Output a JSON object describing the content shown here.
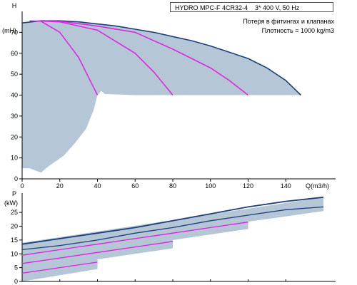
{
  "header": {
    "model": "HYDRO MPC-F 4CR32-4",
    "supply": "3* 400 V, 50 Hz"
  },
  "notes": {
    "line1": "Потеря в фитингах и клапанах",
    "line2": "Плотность = 1000 kg/m3"
  },
  "colors": {
    "envelope": "#b5c6d6",
    "pump_curve": "#1c3f78",
    "system_curve": "#e020e0",
    "axis": "#000000"
  },
  "chart_data": [
    {
      "type": "line",
      "name": "head",
      "ylabel_top": "H",
      "ylabel_unit": "(mH)",
      "xlabel": "Q(m3/h)",
      "xlim": [
        0,
        160
      ],
      "ylim": [
        0,
        80
      ],
      "xticks": [
        0,
        20,
        40,
        60,
        80,
        100,
        120,
        140
      ],
      "yticks": [
        0,
        10,
        20,
        30,
        40,
        50,
        60,
        70
      ],
      "xtick_labels": [
        "0",
        "20",
        "40",
        "60",
        "80",
        "100",
        "120",
        "140"
      ],
      "ytick_labels": [
        "0",
        "10",
        "20",
        "30",
        "40",
        "50",
        "60",
        "70"
      ],
      "grid": false,
      "envelope": {
        "upper": [
          [
            0,
            74.5
          ],
          [
            10,
            75.5
          ],
          [
            20,
            75.5
          ],
          [
            30,
            75
          ],
          [
            40,
            74
          ],
          [
            60,
            71.5
          ],
          [
            80,
            68
          ],
          [
            100,
            63.5
          ],
          [
            120,
            57.5
          ],
          [
            130,
            53
          ],
          [
            140,
            47
          ],
          [
            145,
            43
          ],
          [
            148,
            40
          ]
        ],
        "lower": [
          [
            148,
            40
          ],
          [
            120,
            40
          ],
          [
            100,
            40
          ],
          [
            80,
            40
          ],
          [
            60,
            40
          ],
          [
            44,
            40.5
          ],
          [
            42,
            42
          ],
          [
            40,
            40
          ],
          [
            38,
            33
          ],
          [
            34,
            24
          ],
          [
            28,
            17
          ],
          [
            22,
            11
          ],
          [
            14,
            6
          ],
          [
            10,
            3
          ],
          [
            4,
            5
          ],
          [
            0,
            5
          ]
        ]
      },
      "series": [
        {
          "role": "max_speed_curve",
          "x": [
            0,
            10,
            20,
            30,
            40,
            50,
            60,
            70,
            80,
            90,
            100,
            110,
            120,
            130,
            140,
            148
          ],
          "y": [
            74.5,
            75.5,
            75.5,
            75,
            74,
            73,
            71.5,
            70,
            68,
            66,
            63.5,
            60.5,
            57.5,
            53,
            47,
            40
          ]
        },
        {
          "role": "system_curve",
          "x": [
            4,
            10,
            20,
            30,
            35,
            40
          ],
          "y": [
            75.5,
            75.3,
            70,
            58,
            49,
            40
          ]
        },
        {
          "role": "system_curve",
          "x": [
            8,
            20,
            40,
            60,
            70,
            80
          ],
          "y": [
            75.5,
            75,
            71,
            60,
            51,
            40
          ]
        },
        {
          "role": "system_curve",
          "x": [
            12,
            20,
            40,
            60,
            80,
            100,
            110,
            120
          ],
          "y": [
            75.5,
            75.3,
            73,
            70,
            62,
            53,
            47,
            40
          ]
        }
      ]
    },
    {
      "type": "line",
      "name": "power",
      "ylabel_top": "P",
      "ylabel_unit": "(kW)",
      "xlim": [
        0,
        160
      ],
      "ylim": [
        0,
        32
      ],
      "yticks": [
        0,
        5,
        10,
        15,
        20,
        25
      ],
      "ytick_labels": [
        "0",
        "5",
        "10",
        "15",
        "20",
        "25"
      ],
      "grid": false,
      "segments": [
        {
          "x0": 0,
          "x1": 40,
          "lo0": 0,
          "lo1": 4.5,
          "mid0": 2.5,
          "mid1": 8,
          "hi0": 4,
          "hi1": 10
        },
        {
          "x0": 0,
          "x1": 80,
          "lo0": 4,
          "lo1": 12,
          "mid0": 6,
          "mid1": 15,
          "hi0": 8,
          "hi1": 17
        },
        {
          "x0": 0,
          "x1": 120,
          "lo0": 7,
          "lo1": 19,
          "mid0": 9.5,
          "mid1": 21,
          "hi0": 11.5,
          "hi1": 23
        },
        {
          "x0": 0,
          "x1": 160,
          "lo0": 10,
          "lo1": 25.5,
          "mid0": 12.5,
          "mid1": 27.5,
          "hi0": 14,
          "hi1": 30.5
        }
      ],
      "series": [
        {
          "role": "pump_power_top",
          "x": [
            0,
            20,
            40,
            60,
            80,
            100,
            120,
            140,
            160
          ],
          "y": [
            13.5,
            15.5,
            17.5,
            19.5,
            22,
            24.5,
            27,
            29,
            30.5
          ]
        },
        {
          "role": "pump_power_mid",
          "x": [
            0,
            20,
            40,
            60,
            80,
            100,
            120,
            140,
            160
          ],
          "y": [
            11.5,
            13,
            15,
            17.5,
            19.5,
            22,
            24,
            26,
            27
          ]
        },
        {
          "role": "system_power",
          "x": [
            0,
            20,
            40,
            60,
            80,
            100,
            120
          ],
          "y": [
            9.5,
            11.5,
            13.5,
            15.5,
            17.5,
            19.5,
            21.5
          ]
        },
        {
          "role": "system_power",
          "x": [
            0,
            20,
            40,
            60,
            80
          ],
          "y": [
            6.5,
            8.5,
            10.5,
            12.5,
            14.5
          ]
        },
        {
          "role": "system_power",
          "x": [
            0,
            20,
            40
          ],
          "y": [
            3,
            5,
            7
          ]
        }
      ]
    }
  ]
}
